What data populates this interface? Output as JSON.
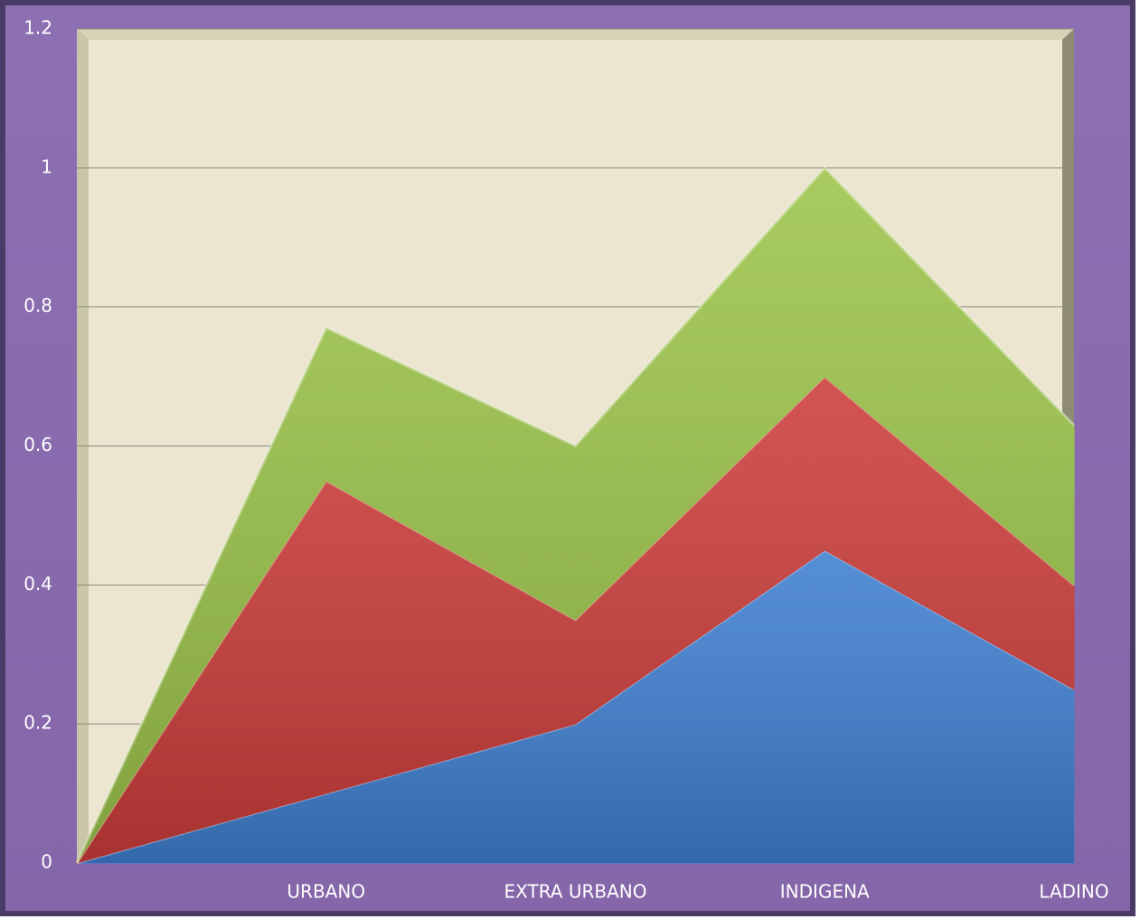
{
  "chart_data": {
    "type": "stacked_area",
    "categories": [
      null,
      "URBANO",
      "EXTRA URBANO",
      "INDIGENA",
      "LADINO"
    ],
    "series": [
      {
        "color": "#3f7fd0",
        "values": [
          0,
          0.1,
          0.2,
          0.45,
          0.25
        ]
      },
      {
        "color": "#cc3d3a",
        "values": [
          0,
          0.45,
          0.15,
          0.25,
          0.15
        ]
      },
      {
        "color": "#9cc44a",
        "values": [
          0,
          0.22,
          0.25,
          0.3,
          0.23
        ]
      }
    ],
    "ylim": [
      0,
      1.2
    ],
    "yticks": [
      0,
      0.2,
      0.4,
      0.6,
      0.8,
      1,
      1.2
    ],
    "grid": true
  }
}
